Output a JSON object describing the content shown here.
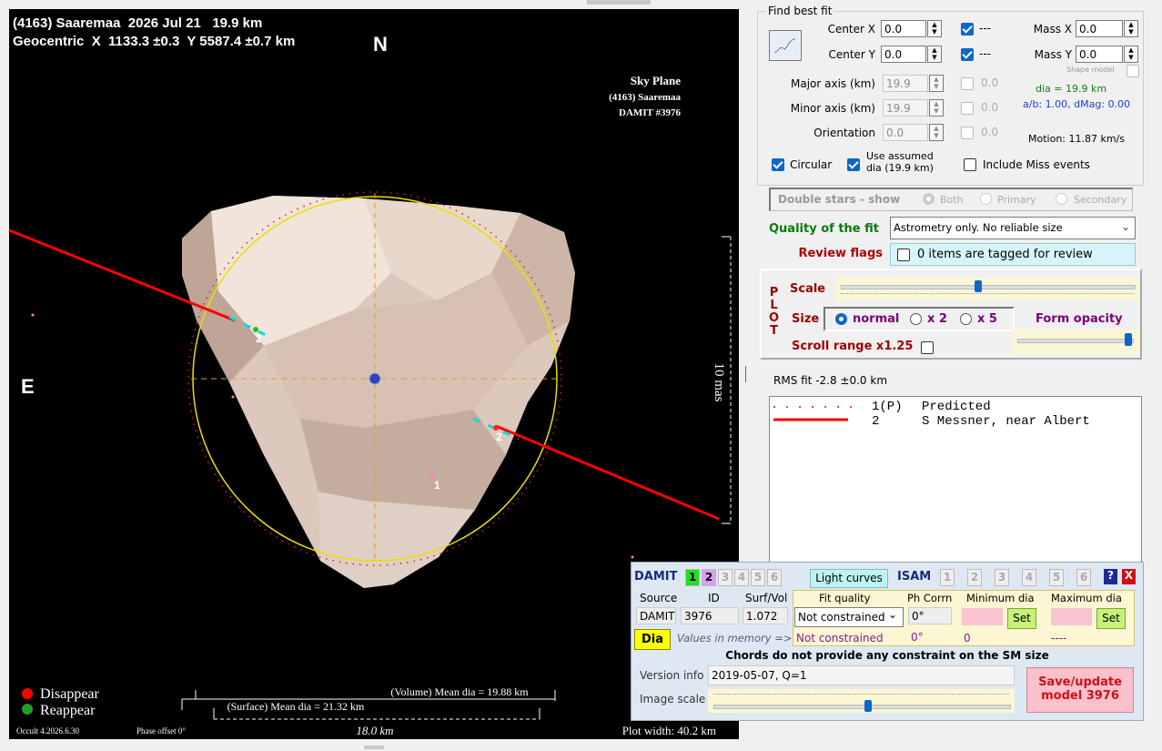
{
  "plot": {
    "title": "(4163) Saaremaa  2026 Jul 21   19.9 km",
    "subtitle": "Geocentric  X  1133.3 ±0.3  Y 5587.4 ±0.7 km",
    "north": "N",
    "east": "E",
    "sky_plane": [
      "Sky Plane",
      "(4163) Saaremaa",
      "DAMIT #3976"
    ],
    "scale_bar": "10 mas",
    "chord_labels": [
      "2",
      "2",
      "1"
    ],
    "legend": [
      "Disappear",
      "Reappear"
    ],
    "volume_dia": "(Volume) Mean dia = 19.88 km",
    "surface_dia": "(Surface) Mean dia = 21.32 km",
    "scale_km": "18.0 km",
    "version": "Occult 4.2026.6.30",
    "phase_offset": "Phase offset 0°",
    "plot_width": "Plot width: 40.2 km"
  },
  "fit": {
    "title": "Find best fit",
    "center_x": {
      "label": "Center X",
      "value": "0.0",
      "check": "---"
    },
    "center_y": {
      "label": "Center Y",
      "value": "0.0",
      "check": "---"
    },
    "mass_x": {
      "label": "Mass X",
      "value": "0.0"
    },
    "mass_y": {
      "label": "Mass Y",
      "value": "0.0"
    },
    "shape_model": "Shape model",
    "major_axis": {
      "label": "Major axis (km)",
      "value": "19.9",
      "check": "0.0"
    },
    "minor_axis": {
      "label": "Minor axis (km)",
      "value": "19.9",
      "check": "0.0"
    },
    "orientation": {
      "label": "Orientation",
      "value": "0.0",
      "check": "0.0"
    },
    "dia": "dia = 19.9 km",
    "ab": "a/b: 1.00, dMag: 0.00",
    "motion": "Motion: 11.87 km/s",
    "circular": "Circular",
    "use_assumed": "Use assumed dia (19.9 km)",
    "include_miss": "Include Miss events"
  },
  "double_stars": {
    "label": "Double stars - show",
    "options": [
      "Both",
      "Primary",
      "Secondary"
    ]
  },
  "quality": {
    "label": "Quality of the fit",
    "value": "Astrometry only. No reliable size"
  },
  "review": {
    "label": "Review flags",
    "value": "0 items are tagged for review"
  },
  "plot_panel": {
    "title": "PLOT",
    "scale": "Scale",
    "size": "Size",
    "sizes": [
      "normal",
      "x 2",
      "x 5"
    ],
    "form_opacity": "Form opacity",
    "scroll_range": "Scroll range x1.25"
  },
  "rms": "RMS fit -2.8 ±0.0 km",
  "observers": [
    {
      "id": "1(P)",
      "name": "Predicted"
    },
    {
      "id": "2",
      "name": "S Messner, near Albert"
    }
  ],
  "damit": {
    "title": "DAMIT",
    "tabs": [
      "1",
      "2",
      "3",
      "4",
      "5",
      "6"
    ],
    "light_curves": "Light curves",
    "isam": "ISAM",
    "isam_tabs": [
      "1",
      "2",
      "3",
      "4",
      "5",
      "6"
    ],
    "help": "?",
    "close": "X",
    "headers": [
      "Source",
      "ID",
      "Surf/Vol",
      "Fit quality",
      "Ph Corrn",
      "Minimum dia",
      "Maximum dia"
    ],
    "row": {
      "source": "DAMIT",
      "id": "3976",
      "surf_vol": "1.072",
      "fit_quality": "Not constrained",
      "ph_corrn": "0°",
      "set_min": "Set",
      "set_max": "Set"
    },
    "dia_button": "Dia",
    "memory_label": "Values in memory =>",
    "memory": {
      "fit_quality": "Not constrained",
      "ph_corrn": "0°",
      "min": "0",
      "max": "----"
    },
    "message": "Chords do not provide any constraint on the SM size",
    "version_label": "Version info",
    "version": "2019-05-07, Q=1",
    "image_scale": "Image scale",
    "save": "Save/update model 3976"
  }
}
